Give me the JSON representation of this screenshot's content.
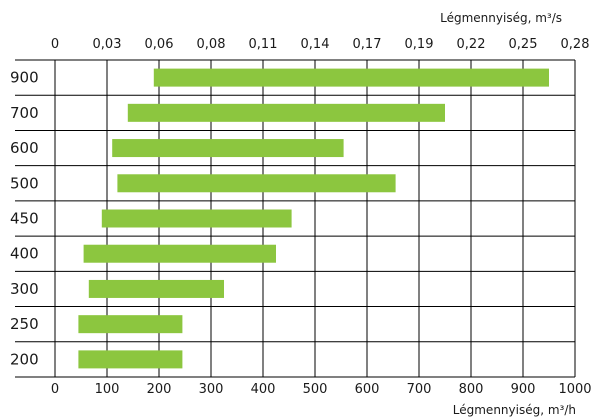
{
  "chart_data": {
    "type": "bar",
    "orientation": "horizontal",
    "range_bars": true,
    "categories": [
      "900",
      "700",
      "600",
      "500",
      "450",
      "400",
      "300",
      "250",
      "200"
    ],
    "ranges": [
      [
        190,
        950
      ],
      [
        140,
        750
      ],
      [
        110,
        555
      ],
      [
        120,
        655
      ],
      [
        90,
        455
      ],
      [
        55,
        425
      ],
      [
        65,
        325
      ],
      [
        45,
        245
      ],
      [
        45,
        245
      ]
    ],
    "bar_color": "#8cc63f",
    "xlabel_bottom": "Légmennyiség, m³/h",
    "xlabel_top": "Légmennyiség, m³/s",
    "xlim": [
      0,
      1000
    ],
    "x_ticks_bottom": [
      0,
      100,
      200,
      300,
      400,
      500,
      600,
      700,
      800,
      900,
      1000
    ],
    "x_tick_labels_top": [
      "0",
      "0,03",
      "0,06",
      "0,08",
      "0,11",
      "0,14",
      "0,17",
      "0,19",
      "0,22",
      "0,25",
      "0,28"
    ],
    "grid": true
  }
}
